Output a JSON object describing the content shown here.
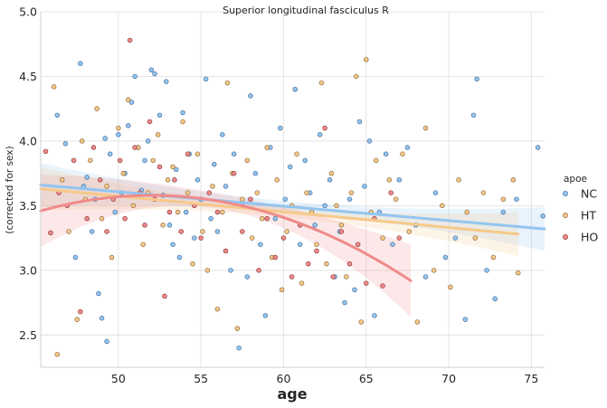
{
  "chart_data": {
    "type": "scatter",
    "title": "Superior longitudinal fasciculus R",
    "xlabel": "age",
    "ylabel": "(corrected for sex)",
    "xlim": [
      45.3,
      75.8
    ],
    "ylim": [
      2.25,
      5.0
    ],
    "xticks": [
      50,
      55,
      60,
      65,
      70,
      75
    ],
    "yticks": [
      2.5,
      3.0,
      3.5,
      4.0,
      4.5,
      5.0
    ],
    "grid": true,
    "legend": {
      "title": "apoe",
      "placement": "right"
    },
    "series": [
      {
        "name": "NC",
        "color": "#92c5f0",
        "edge": "#4a6f9a",
        "points": [
          [
            46.3,
            4.2
          ],
          [
            46.8,
            3.98
          ],
          [
            47.4,
            3.1
          ],
          [
            47.7,
            4.6
          ],
          [
            47.9,
            3.65
          ],
          [
            48.1,
            3.72
          ],
          [
            48.4,
            3.3
          ],
          [
            48.6,
            3.55
          ],
          [
            48.8,
            2.82
          ],
          [
            49.0,
            2.63
          ],
          [
            49.2,
            4.02
          ],
          [
            49.3,
            2.45
          ],
          [
            49.5,
            3.9
          ],
          [
            49.8,
            3.45
          ],
          [
            50.0,
            4.05
          ],
          [
            50.2,
            3.6
          ],
          [
            50.4,
            3.75
          ],
          [
            50.6,
            4.12
          ],
          [
            50.8,
            4.3
          ],
          [
            51.0,
            4.5
          ],
          [
            51.2,
            3.95
          ],
          [
            51.4,
            3.62
          ],
          [
            51.6,
            3.85
          ],
          [
            51.8,
            4.0
          ],
          [
            52.0,
            4.55
          ],
          [
            52.2,
            4.52
          ],
          [
            52.5,
            4.2
          ],
          [
            52.7,
            3.58
          ],
          [
            52.9,
            4.46
          ],
          [
            53.1,
            3.35
          ],
          [
            53.3,
            3.2
          ],
          [
            53.5,
            3.78
          ],
          [
            53.7,
            3.1
          ],
          [
            53.9,
            4.22
          ],
          [
            54.1,
            3.45
          ],
          [
            54.3,
            3.9
          ],
          [
            54.6,
            3.25
          ],
          [
            54.8,
            3.7
          ],
          [
            55.0,
            3.55
          ],
          [
            55.3,
            4.48
          ],
          [
            55.6,
            3.4
          ],
          [
            55.8,
            3.82
          ],
          [
            56.0,
            3.3
          ],
          [
            56.3,
            4.05
          ],
          [
            56.5,
            3.65
          ],
          [
            56.8,
            3.0
          ],
          [
            57.0,
            3.9
          ],
          [
            57.3,
            2.4
          ],
          [
            57.5,
            3.5
          ],
          [
            57.8,
            2.95
          ],
          [
            58.0,
            4.35
          ],
          [
            58.3,
            3.75
          ],
          [
            58.6,
            3.2
          ],
          [
            58.9,
            2.65
          ],
          [
            59.2,
            3.95
          ],
          [
            59.5,
            3.4
          ],
          [
            59.8,
            4.1
          ],
          [
            60.1,
            3.55
          ],
          [
            60.4,
            3.8
          ],
          [
            60.7,
            4.4
          ],
          [
            61.0,
            3.2
          ],
          [
            61.3,
            3.85
          ],
          [
            61.6,
            3.6
          ],
          [
            61.9,
            3.35
          ],
          [
            62.2,
            4.05
          ],
          [
            62.5,
            3.5
          ],
          [
            62.8,
            3.7
          ],
          [
            63.1,
            2.95
          ],
          [
            63.4,
            3.3
          ],
          [
            63.7,
            2.75
          ],
          [
            64.0,
            3.55
          ],
          [
            64.3,
            2.85
          ],
          [
            64.6,
            4.15
          ],
          [
            64.9,
            3.65
          ],
          [
            65.2,
            4.0
          ],
          [
            65.5,
            2.65
          ],
          [
            65.8,
            3.45
          ],
          [
            66.2,
            3.9
          ],
          [
            66.6,
            3.2
          ],
          [
            67.0,
            3.7
          ],
          [
            67.5,
            3.95
          ],
          [
            68.0,
            3.35
          ],
          [
            68.6,
            2.95
          ],
          [
            69.2,
            3.6
          ],
          [
            69.8,
            3.1
          ],
          [
            70.4,
            3.25
          ],
          [
            71.0,
            2.62
          ],
          [
            71.5,
            4.2
          ],
          [
            71.7,
            4.48
          ],
          [
            72.3,
            3.0
          ],
          [
            72.8,
            2.78
          ],
          [
            73.3,
            3.45
          ],
          [
            74.1,
            3.55
          ],
          [
            75.4,
            3.95
          ],
          [
            75.7,
            3.42
          ]
        ],
        "fit": {
          "x": [
            45.3,
            75.8
          ],
          "y": [
            3.66,
            3.32
          ],
          "type": "linear"
        }
      },
      {
        "name": "HT",
        "color": "#f6c98a",
        "edge": "#8a6a3c",
        "points": [
          [
            46.1,
            4.42
          ],
          [
            46.3,
            2.35
          ],
          [
            46.6,
            3.7
          ],
          [
            47.0,
            3.3
          ],
          [
            47.5,
            2.62
          ],
          [
            47.8,
            4.0
          ],
          [
            48.0,
            3.55
          ],
          [
            48.3,
            3.85
          ],
          [
            48.7,
            4.25
          ],
          [
            49.0,
            3.4
          ],
          [
            49.3,
            3.65
          ],
          [
            49.6,
            3.1
          ],
          [
            50.0,
            4.1
          ],
          [
            50.3,
            3.75
          ],
          [
            50.6,
            4.32
          ],
          [
            50.9,
            3.5
          ],
          [
            51.2,
            3.95
          ],
          [
            51.5,
            3.2
          ],
          [
            51.8,
            3.6
          ],
          [
            52.1,
            3.85
          ],
          [
            52.4,
            4.05
          ],
          [
            52.7,
            3.35
          ],
          [
            53.0,
            3.7
          ],
          [
            53.3,
            3.8
          ],
          [
            53.6,
            3.45
          ],
          [
            53.9,
            4.15
          ],
          [
            54.2,
            3.6
          ],
          [
            54.5,
            3.05
          ],
          [
            54.8,
            3.9
          ],
          [
            55.1,
            3.3
          ],
          [
            55.4,
            3.0
          ],
          [
            55.7,
            3.65
          ],
          [
            56.0,
            2.7
          ],
          [
            56.3,
            3.45
          ],
          [
            56.6,
            4.45
          ],
          [
            56.9,
            3.75
          ],
          [
            57.2,
            2.55
          ],
          [
            57.5,
            3.55
          ],
          [
            57.8,
            3.85
          ],
          [
            58.1,
            3.25
          ],
          [
            58.4,
            3.6
          ],
          [
            58.7,
            3.4
          ],
          [
            59.0,
            3.95
          ],
          [
            59.3,
            3.1
          ],
          [
            59.6,
            3.7
          ],
          [
            59.9,
            2.85
          ],
          [
            60.2,
            3.3
          ],
          [
            60.5,
            3.5
          ],
          [
            60.8,
            3.9
          ],
          [
            61.1,
            2.9
          ],
          [
            61.4,
            3.6
          ],
          [
            61.7,
            3.45
          ],
          [
            62.0,
            3.2
          ],
          [
            62.3,
            4.45
          ],
          [
            62.6,
            3.05
          ],
          [
            62.9,
            3.75
          ],
          [
            63.2,
            3.5
          ],
          [
            63.5,
            3.35
          ],
          [
            63.8,
            2.95
          ],
          [
            64.1,
            3.6
          ],
          [
            64.4,
            4.5
          ],
          [
            64.7,
            2.6
          ],
          [
            65.0,
            4.63
          ],
          [
            65.3,
            3.45
          ],
          [
            65.6,
            3.85
          ],
          [
            66.0,
            3.25
          ],
          [
            66.4,
            3.7
          ],
          [
            66.8,
            3.55
          ],
          [
            67.2,
            3.9
          ],
          [
            67.6,
            3.3
          ],
          [
            68.1,
            2.6
          ],
          [
            68.6,
            4.1
          ],
          [
            69.1,
            3.0
          ],
          [
            69.6,
            3.5
          ],
          [
            70.1,
            2.87
          ],
          [
            70.6,
            3.7
          ],
          [
            71.1,
            3.45
          ],
          [
            71.6,
            3.25
          ],
          [
            72.1,
            3.6
          ],
          [
            72.7,
            3.1
          ],
          [
            73.3,
            3.55
          ],
          [
            73.9,
            3.7
          ],
          [
            74.2,
            2.98
          ]
        ],
        "fit": {
          "x": [
            45.3,
            74.2
          ],
          "y": [
            3.63,
            3.28
          ],
          "type": "linear"
        }
      },
      {
        "name": "HO",
        "color": "#f08a8a",
        "edge": "#8a3a3a",
        "points": [
          [
            45.6,
            3.92
          ],
          [
            45.9,
            3.29
          ],
          [
            46.4,
            3.6
          ],
          [
            46.9,
            3.5
          ],
          [
            47.3,
            3.85
          ],
          [
            47.7,
            2.68
          ],
          [
            48.1,
            3.4
          ],
          [
            48.5,
            3.95
          ],
          [
            48.9,
            3.7
          ],
          [
            49.3,
            3.3
          ],
          [
            49.7,
            3.55
          ],
          [
            50.1,
            3.85
          ],
          [
            50.4,
            3.4
          ],
          [
            50.7,
            4.78
          ],
          [
            51.0,
            3.95
          ],
          [
            51.3,
            3.6
          ],
          [
            51.6,
            3.35
          ],
          [
            51.9,
            4.15
          ],
          [
            52.2,
            3.55
          ],
          [
            52.5,
            3.8
          ],
          [
            52.8,
            2.8
          ],
          [
            53.1,
            3.45
          ],
          [
            53.4,
            3.7
          ],
          [
            53.8,
            3.3
          ],
          [
            54.2,
            3.9
          ],
          [
            54.6,
            3.5
          ],
          [
            55.0,
            3.25
          ],
          [
            55.5,
            3.6
          ],
          [
            56.0,
            3.45
          ],
          [
            56.5,
            3.15
          ],
          [
            57.0,
            3.75
          ],
          [
            57.5,
            3.3
          ],
          [
            58.0,
            3.55
          ],
          [
            58.5,
            3.0
          ],
          [
            59.0,
            3.4
          ],
          [
            59.5,
            3.1
          ],
          [
            60.0,
            3.25
          ],
          [
            60.5,
            2.95
          ],
          [
            61.0,
            3.35
          ],
          [
            61.5,
            3.05
          ],
          [
            62.0,
            3.15
          ],
          [
            62.5,
            4.1
          ],
          [
            63.0,
            2.95
          ],
          [
            63.5,
            3.3
          ],
          [
            64.0,
            3.05
          ],
          [
            64.5,
            3.2
          ],
          [
            65.0,
            2.9
          ],
          [
            65.5,
            3.4
          ],
          [
            66.0,
            2.88
          ],
          [
            66.5,
            3.6
          ],
          [
            67.0,
            3.25
          ]
        ],
        "fit": {
          "x": [
            45.3,
            67.7
          ],
          "y": [
            3.46,
            2.92
          ],
          "type": "quadratic"
        }
      }
    ]
  }
}
